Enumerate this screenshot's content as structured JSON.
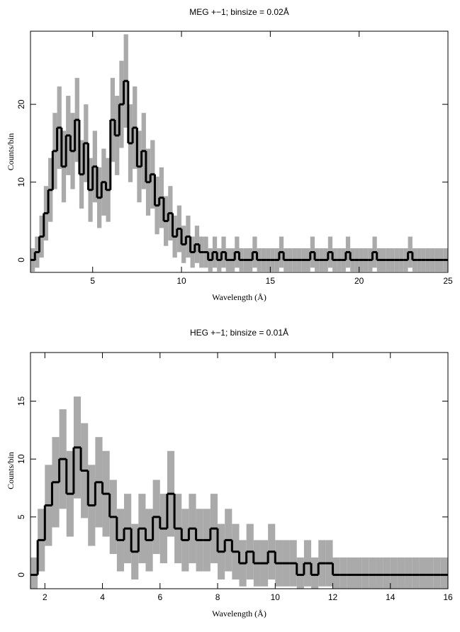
{
  "chart_data": [
    {
      "type": "step",
      "title": "MEG +−1; binsize = 0.02Å",
      "xlabel": "Wavelength (Å)",
      "ylabel": "Counts/bin",
      "xlim": [
        1.5,
        25
      ],
      "ylim": [
        -1.6,
        29.4
      ],
      "xticks": [
        5,
        10,
        15,
        20,
        25
      ],
      "yticks": [
        0,
        10,
        20
      ],
      "color": "#000000",
      "error_color": "#aaaaaa",
      "x": [
        1.5,
        1.75,
        2,
        2.25,
        2.5,
        2.75,
        3,
        3.25,
        3.5,
        3.75,
        4,
        4.25,
        4.5,
        4.75,
        5,
        5.25,
        5.5,
        5.75,
        6,
        6.25,
        6.5,
        6.75,
        7,
        7.25,
        7.5,
        7.75,
        8,
        8.25,
        8.5,
        8.75,
        9,
        9.25,
        9.5,
        9.75,
        10,
        10.25,
        10.5,
        10.75,
        11,
        11.25,
        11.5,
        11.75,
        12,
        12.25,
        12.5,
        12.75,
        13,
        13.25,
        13.5,
        13.75,
        14,
        14.25,
        14.5,
        14.75,
        15,
        15.25,
        15.5,
        15.75,
        16,
        16.25,
        16.5,
        16.75,
        17,
        17.25,
        17.5,
        17.75,
        18,
        18.25,
        18.5,
        18.75,
        19,
        19.25,
        19.5,
        19.75,
        20,
        20.25,
        20.5,
        20.75,
        21,
        21.25,
        21.5,
        21.75,
        22,
        22.25,
        22.5,
        22.75,
        23,
        23.25,
        23.5,
        23.75,
        24,
        24.25,
        24.5,
        24.75,
        25
      ],
      "values": [
        0,
        1,
        3,
        6,
        9,
        14,
        17,
        12,
        16,
        14,
        18,
        11,
        15,
        9,
        12,
        8,
        10,
        9,
        18,
        16,
        20,
        23,
        15,
        17,
        12,
        14,
        10,
        11,
        7,
        8,
        5,
        6,
        3,
        4,
        2,
        3,
        1,
        2,
        1,
        1,
        0,
        1,
        0,
        1,
        0,
        0,
        1,
        0,
        0,
        0,
        1,
        0,
        0,
        0,
        0,
        0,
        1,
        0,
        0,
        0,
        0,
        0,
        0,
        1,
        0,
        0,
        0,
        1,
        0,
        0,
        0,
        1,
        0,
        0,
        0,
        0,
        0,
        1,
        0,
        0,
        0,
        0,
        0,
        0,
        0,
        1,
        0,
        0,
        0,
        0,
        0,
        0,
        0,
        0,
        0
      ],
      "errors": [
        1.5,
        2,
        2.7,
        3.5,
        4.1,
        4.9,
        5.3,
        4.6,
        5.1,
        4.9,
        5.4,
        4.4,
        5,
        4.1,
        4.6,
        3.9,
        4.3,
        4.1,
        5.4,
        5.1,
        5.6,
        6,
        5,
        5.3,
        4.6,
        4.9,
        4.3,
        4.4,
        3.7,
        3.9,
        3.2,
        3.5,
        2.7,
        3,
        2.4,
        2.7,
        2,
        2.4,
        2,
        2,
        1.5,
        2,
        1.5,
        2,
        1.5,
        1.5,
        2,
        1.5,
        1.5,
        1.5,
        2,
        1.5,
        1.5,
        1.5,
        1.5,
        1.5,
        2,
        1.5,
        1.5,
        1.5,
        1.5,
        1.5,
        1.5,
        2,
        1.5,
        1.5,
        1.5,
        2,
        1.5,
        1.5,
        1.5,
        2,
        1.5,
        1.5,
        1.5,
        1.5,
        1.5,
        2,
        1.5,
        1.5,
        1.5,
        1.5,
        1.5,
        1.5,
        1.5,
        2,
        1.5,
        1.5,
        1.5,
        1.5,
        1.5,
        1.5,
        1.5,
        1.5,
        1.5
      ]
    },
    {
      "type": "step",
      "title": "HEG +−1; binsize = 0.01Å",
      "xlabel": "Wavelength (Å)",
      "ylabel": "Counts/bin",
      "xlim": [
        1.5,
        16
      ],
      "ylim": [
        -1.2,
        19.2
      ],
      "xticks": [
        2,
        4,
        6,
        8,
        10,
        12,
        14,
        16
      ],
      "yticks": [
        0,
        5,
        10,
        15
      ],
      "color": "#000000",
      "error_color": "#aaaaaa",
      "x": [
        1.5,
        1.75,
        2,
        2.25,
        2.5,
        2.75,
        3,
        3.25,
        3.5,
        3.75,
        4,
        4.25,
        4.5,
        4.75,
        5,
        5.25,
        5.5,
        5.75,
        6,
        6.25,
        6.5,
        6.75,
        7,
        7.25,
        7.5,
        7.75,
        8,
        8.25,
        8.5,
        8.75,
        9,
        9.25,
        9.5,
        9.75,
        10,
        10.25,
        10.5,
        10.75,
        11,
        11.25,
        11.5,
        11.75,
        12,
        12.25,
        12.5,
        12.75,
        13,
        13.25,
        13.5,
        13.75,
        14,
        14.25,
        14.5,
        14.75,
        15,
        15.25,
        15.5,
        15.75,
        16
      ],
      "values": [
        0,
        3,
        6,
        8,
        10,
        7,
        11,
        9,
        6,
        8,
        7,
        5,
        3,
        4,
        2,
        4,
        3,
        5,
        4,
        7,
        4,
        3,
        4,
        3,
        3,
        4,
        2,
        3,
        2,
        1,
        2,
        1,
        1,
        2,
        1,
        1,
        1,
        0,
        1,
        0,
        1,
        1,
        0,
        0,
        0,
        0,
        0,
        0,
        0,
        0,
        0,
        0,
        0,
        0,
        0,
        0,
        0,
        0,
        0
      ],
      "errors": [
        1.5,
        2.7,
        3.5,
        3.9,
        4.3,
        3.7,
        4.4,
        4.1,
        3.5,
        3.9,
        3.7,
        3.2,
        2.7,
        3,
        2.4,
        3,
        2.7,
        3.2,
        3,
        3.7,
        3,
        2.7,
        3,
        2.7,
        2.7,
        3,
        2.4,
        2.7,
        2.4,
        2,
        2.4,
        2,
        2,
        2.4,
        2,
        2,
        2,
        1.5,
        2,
        1.5,
        2,
        2,
        1.5,
        1.5,
        1.5,
        1.5,
        1.5,
        1.5,
        1.5,
        1.5,
        1.5,
        1.5,
        1.5,
        1.5,
        1.5,
        1.5,
        1.5,
        1.5,
        1.5
      ]
    }
  ]
}
